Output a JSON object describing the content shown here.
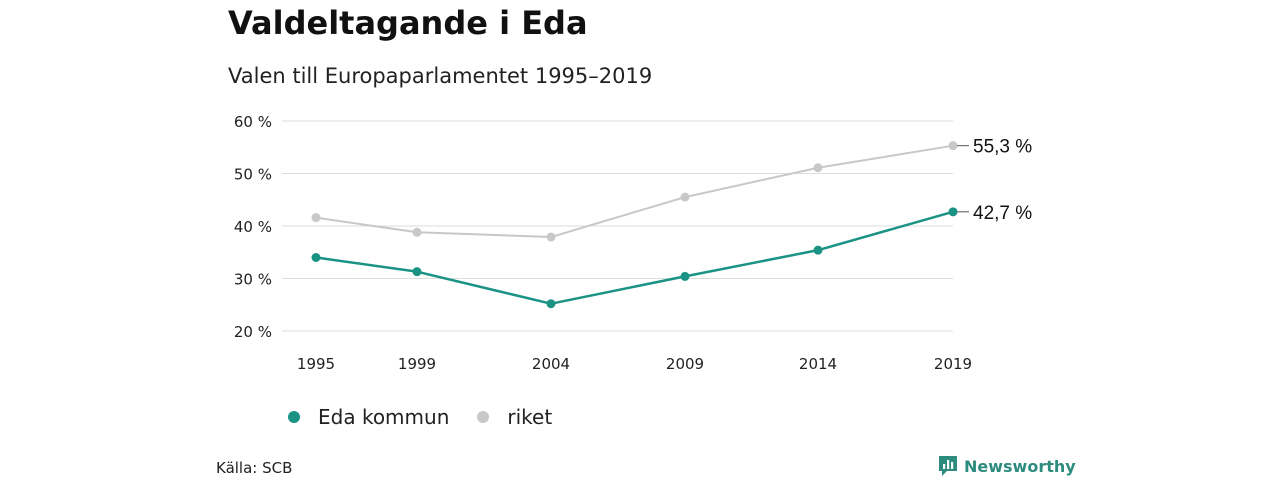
{
  "header": {
    "title": "Valdeltagande i Eda",
    "subtitle": "Valen till Europaparlamentet 1995–2019"
  },
  "footer": {
    "source": "Källa: SCB",
    "brand": "Newsworthy"
  },
  "colors": {
    "eda": "#1a9384",
    "riket": "#c8c8c8",
    "grid": "#dddddd",
    "brand": "#2d8c7e"
  },
  "legend": {
    "eda_label": "Eda kommun",
    "riket_label": "riket"
  },
  "chart_data": {
    "type": "line",
    "x": [
      1995,
      1999,
      2004,
      2009,
      2014,
      2019
    ],
    "y_ticks": [
      20,
      30,
      40,
      50,
      60
    ],
    "y_tick_labels": [
      "20 %",
      "30 %",
      "40 %",
      "50 %",
      "60 %"
    ],
    "ylim": [
      20,
      60
    ],
    "grid": true,
    "legend_position": "bottom-left",
    "series": [
      {
        "name": "Eda kommun",
        "color": "#1a9384",
        "values": [
          34.0,
          31.3,
          25.2,
          30.4,
          35.4,
          42.7
        ],
        "end_label": "42,7 %"
      },
      {
        "name": "riket",
        "color": "#c8c8c8",
        "values": [
          41.6,
          38.8,
          37.9,
          45.5,
          51.1,
          55.3
        ],
        "end_label": "55,3 %"
      }
    ]
  }
}
